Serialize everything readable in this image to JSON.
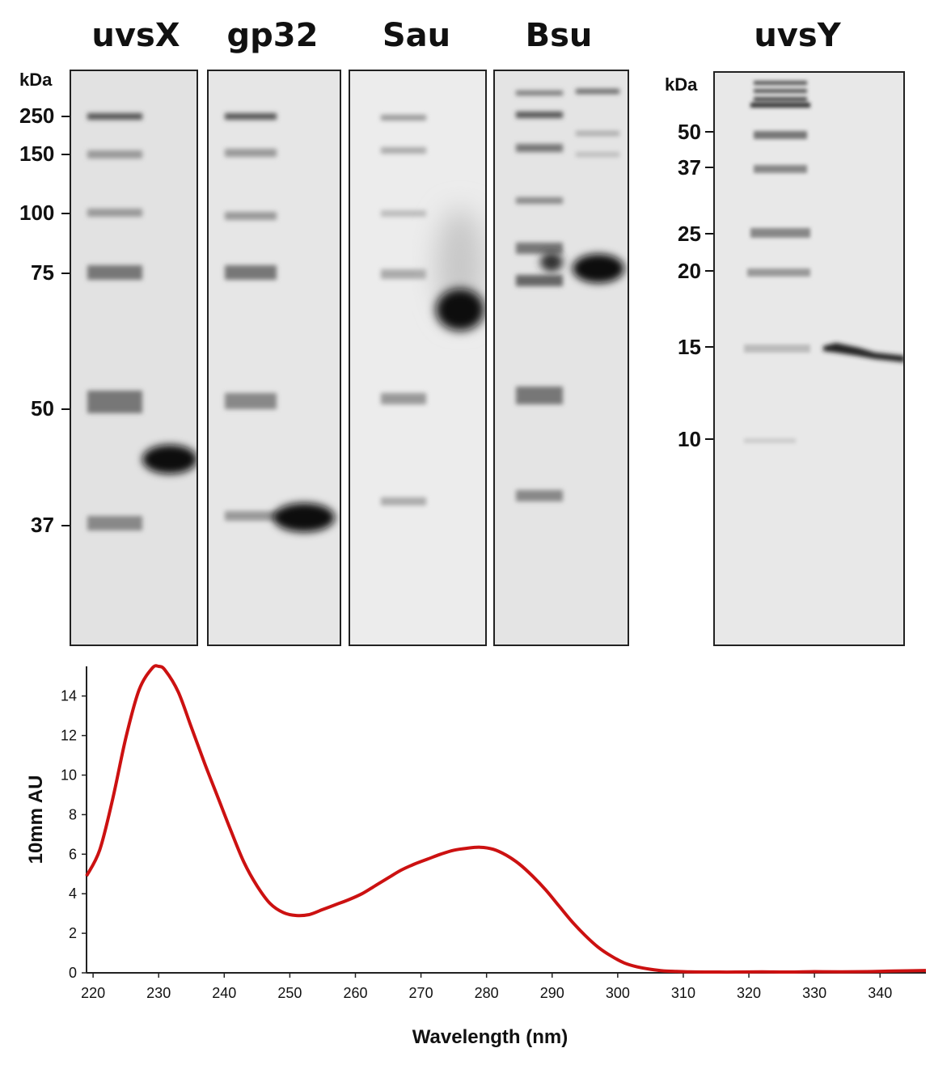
{
  "gels": {
    "titles": [
      "uvsX",
      "gp32",
      "Sau",
      "Bsu",
      "uvsY"
    ],
    "left_unit": "kDa",
    "left_markers": [
      "250",
      "150",
      "100",
      "75",
      "50",
      "37"
    ],
    "right_unit": "kDa",
    "right_markers": [
      "50",
      "37",
      "25",
      "20",
      "15",
      "10"
    ]
  },
  "chart_data": {
    "type": "line",
    "xlabel": "Wavelength (nm)",
    "ylabel": "10mm AU",
    "xlim": [
      219,
      347
    ],
    "ylim": [
      0,
      15.5
    ],
    "xticks": [
      220,
      230,
      240,
      250,
      260,
      270,
      280,
      290,
      300,
      310,
      320,
      330,
      340
    ],
    "yticks": [
      0,
      2,
      4,
      6,
      8,
      10,
      12,
      14
    ],
    "grid": false,
    "series": [
      {
        "color": "#cc1111",
        "x": [
          219,
          221,
          223,
          225,
          227,
          229,
          230,
          231,
          233,
          235,
          237,
          239,
          241,
          243,
          245,
          247,
          249,
          251,
          253,
          255,
          257,
          259,
          261,
          263,
          265,
          267,
          269,
          271,
          273,
          275,
          277,
          279,
          281,
          283,
          285,
          287,
          289,
          291,
          293,
          295,
          297,
          299,
          301,
          303,
          305,
          307,
          309,
          311,
          314,
          318,
          322,
          326,
          330,
          334,
          338,
          342,
          347
        ],
        "y": [
          4.9,
          6.2,
          8.8,
          11.9,
          14.3,
          15.4,
          15.5,
          15.3,
          14.2,
          12.4,
          10.6,
          8.9,
          7.2,
          5.6,
          4.4,
          3.5,
          3.05,
          2.9,
          2.95,
          3.2,
          3.45,
          3.7,
          4.0,
          4.4,
          4.8,
          5.2,
          5.5,
          5.75,
          6.0,
          6.2,
          6.3,
          6.35,
          6.25,
          5.95,
          5.5,
          4.9,
          4.2,
          3.4,
          2.6,
          1.9,
          1.3,
          0.85,
          0.5,
          0.3,
          0.18,
          0.1,
          0.07,
          0.05,
          0.04,
          0.04,
          0.05,
          0.04,
          0.06,
          0.05,
          0.06,
          0.09,
          0.12
        ]
      }
    ]
  }
}
